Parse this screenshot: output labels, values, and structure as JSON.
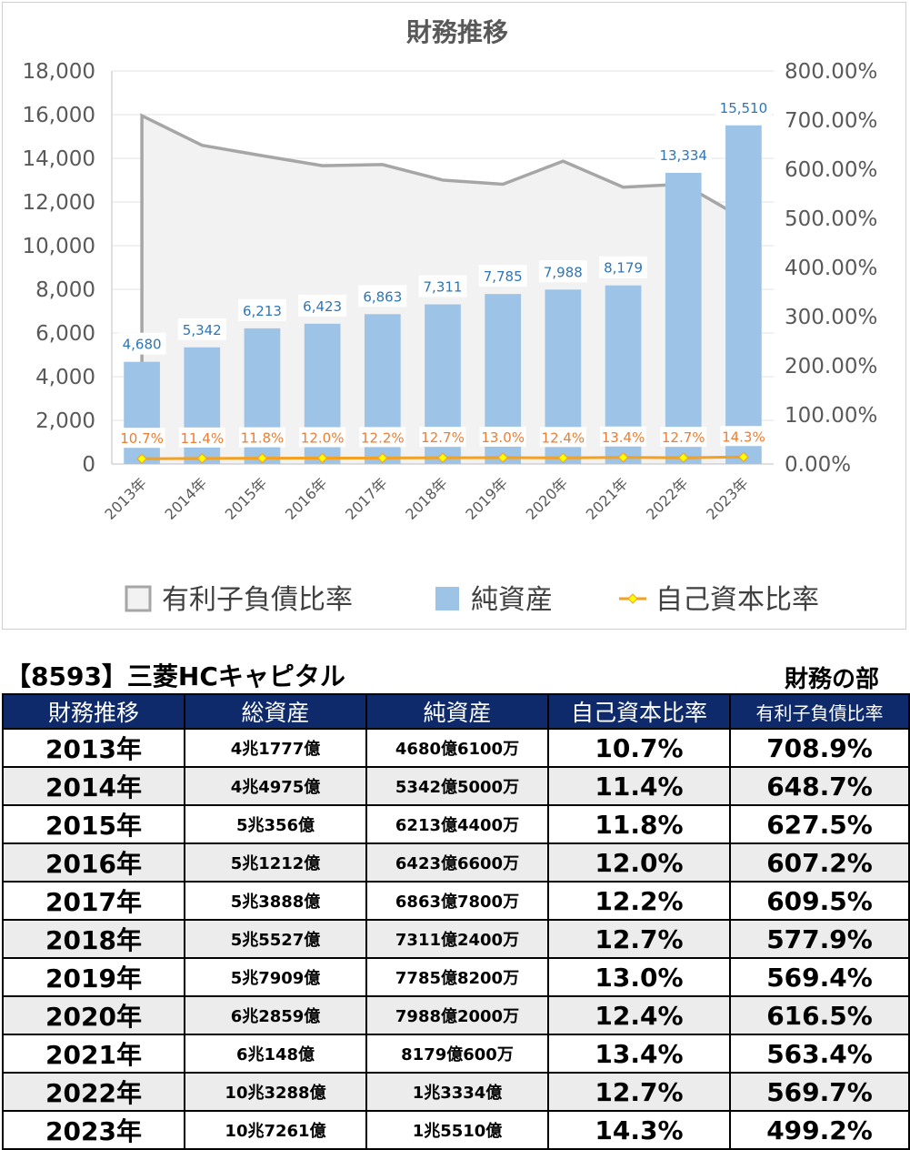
{
  "chart_data": {
    "type": "bar",
    "title": "財務推移",
    "categories": [
      "2013年",
      "2014年",
      "2015年",
      "2016年",
      "2017年",
      "2018年",
      "2019年",
      "2020年",
      "2021年",
      "2022年",
      "2023年"
    ],
    "series": [
      {
        "name": "有利子負債比率",
        "type": "area",
        "axis": "right",
        "color": "#a6a6a6",
        "values": [
          708.9,
          648.7,
          627.5,
          607.2,
          609.5,
          577.9,
          569.4,
          616.5,
          563.4,
          569.7,
          499.2
        ]
      },
      {
        "name": "純資産",
        "type": "bar",
        "axis": "left",
        "color": "#9dc3e6",
        "values": [
          4680,
          5342,
          6213,
          6423,
          6863,
          7311,
          7785,
          7988,
          8179,
          13334,
          15510
        ],
        "labels": [
          "4,680",
          "5,342",
          "6,213",
          "6,423",
          "6,863",
          "7,311",
          "7,785",
          "7,988",
          "8,179",
          "13,334",
          "15,510"
        ]
      },
      {
        "name": "自己資本比率",
        "type": "line",
        "axis": "right",
        "color": "#f4a021",
        "values": [
          10.7,
          11.4,
          11.8,
          12.0,
          12.2,
          12.7,
          13.0,
          12.4,
          13.4,
          12.7,
          14.3
        ],
        "labels": [
          "10.7%",
          "11.4%",
          "11.8%",
          "12.0%",
          "12.2%",
          "12.7%",
          "13.0%",
          "12.4%",
          "13.4%",
          "12.7%",
          "14.3%"
        ]
      }
    ],
    "y_left": {
      "min": 0,
      "max": 18000,
      "ticks": [
        "0",
        "2,000",
        "4,000",
        "6,000",
        "8,000",
        "10,000",
        "12,000",
        "14,000",
        "16,000",
        "18,000"
      ]
    },
    "y_right": {
      "min": 0,
      "max": 800,
      "ticks": [
        "0.00%",
        "100.00%",
        "200.00%",
        "300.00%",
        "400.00%",
        "500.00%",
        "600.00%",
        "700.00%",
        "800.00%"
      ]
    },
    "grid": true,
    "legend_position": "bottom"
  },
  "sheet": {
    "title": "【8593】三菱HCキャピタル",
    "section": "財務の部",
    "headers": [
      "財務推移",
      "総資産",
      "純資産",
      "自己資本比率",
      "有利子負債比率"
    ],
    "rows": [
      [
        "2013年",
        "4兆1777億",
        "4680億6100万",
        "10.7%",
        "708.9%"
      ],
      [
        "2014年",
        "4兆4975億",
        "5342億5000万",
        "11.4%",
        "648.7%"
      ],
      [
        "2015年",
        "5兆356億",
        "6213億4400万",
        "11.8%",
        "627.5%"
      ],
      [
        "2016年",
        "5兆1212億",
        "6423億6600万",
        "12.0%",
        "607.2%"
      ],
      [
        "2017年",
        "5兆3888億",
        "6863億7800万",
        "12.2%",
        "609.5%"
      ],
      [
        "2018年",
        "5兆5527億",
        "7311億2400万",
        "12.7%",
        "577.9%"
      ],
      [
        "2019年",
        "5兆7909億",
        "7785億8200万",
        "13.0%",
        "569.4%"
      ],
      [
        "2020年",
        "6兆2859億",
        "7988億2000万",
        "12.4%",
        "616.5%"
      ],
      [
        "2021年",
        "6兆148億",
        "8179億600万",
        "13.4%",
        "563.4%"
      ],
      [
        "2022年",
        "10兆3288億",
        "1兆3334億",
        "12.7%",
        "569.7%"
      ],
      [
        "2023年",
        "10兆7261億",
        "1兆5510億",
        "14.3%",
        "499.2%"
      ]
    ]
  }
}
